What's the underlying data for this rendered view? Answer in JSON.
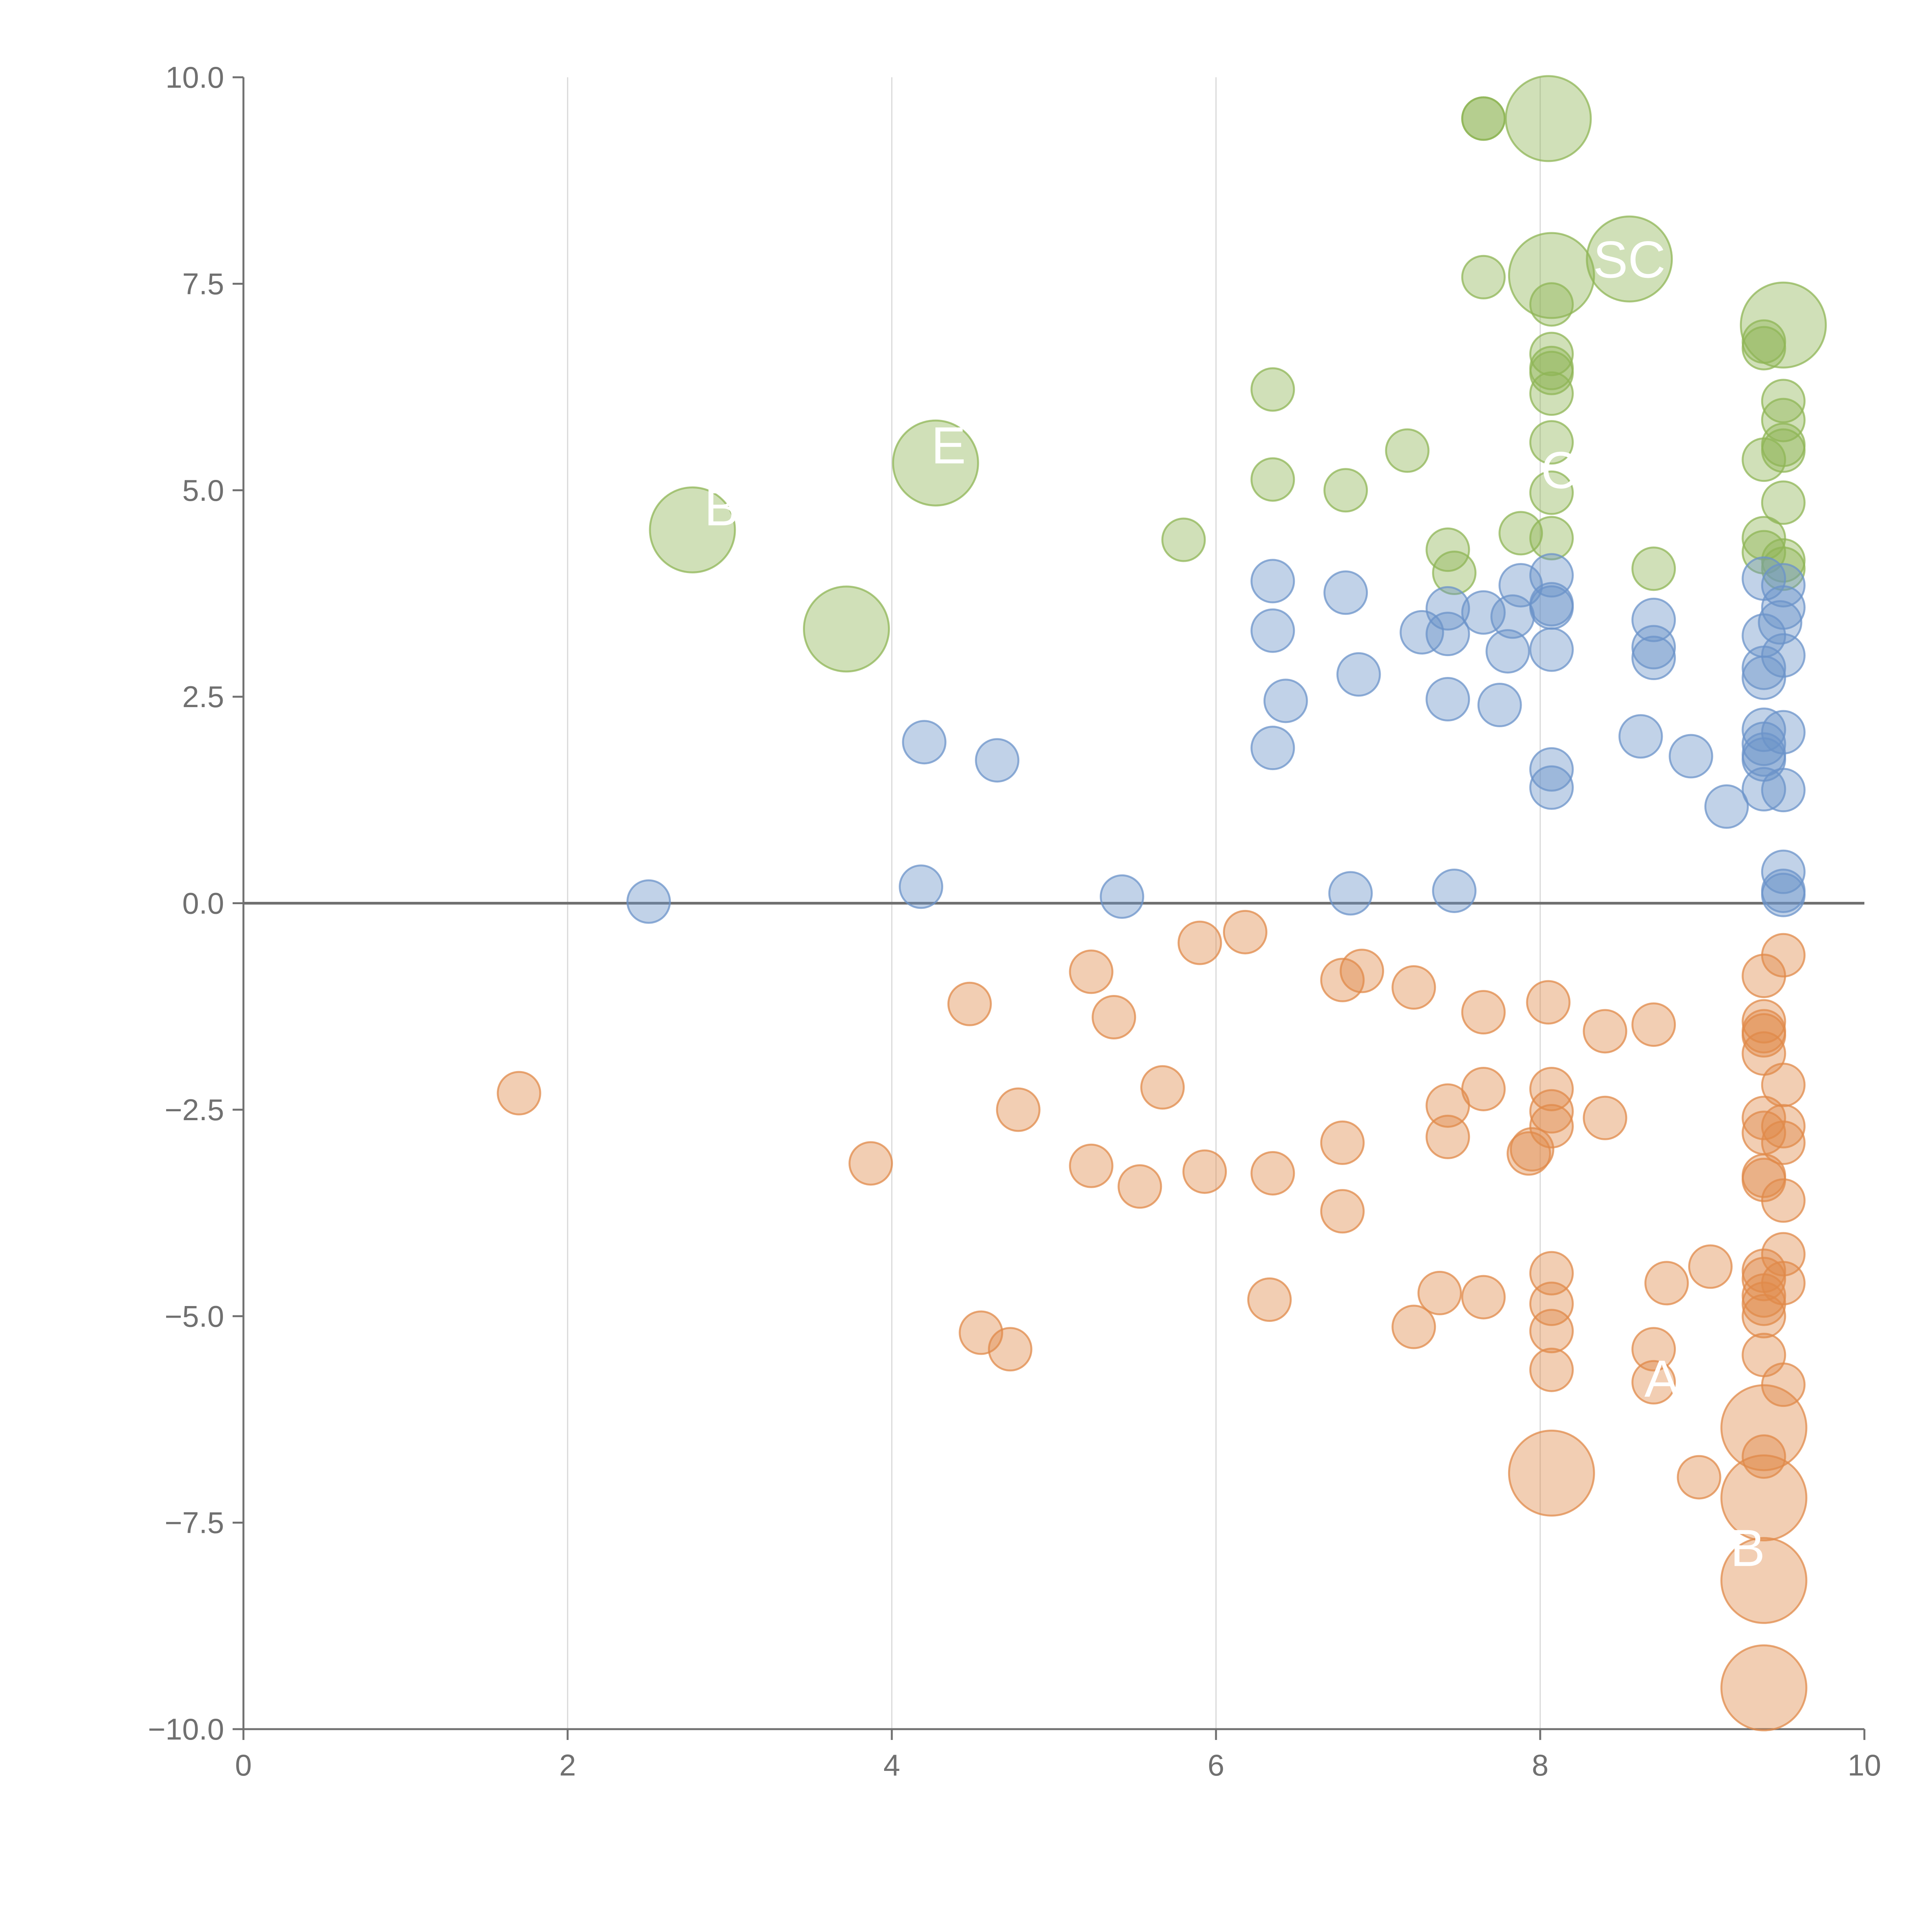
{
  "chart_data": {
    "type": "scatter",
    "title": "",
    "xlabel": "",
    "ylabel": "",
    "xlim": [
      0,
      10
    ],
    "ylim": [
      -10,
      10
    ],
    "x_ticks": [
      "0",
      "2",
      "4",
      "6",
      "8",
      "10"
    ],
    "y_ticks": [
      "10.0",
      "7.5",
      "5.0",
      "2.5",
      "0.0",
      "−2.5",
      "−5.0",
      "−7.5",
      "−10.0"
    ],
    "grid": "vertical",
    "zero_line": true,
    "legend": "none",
    "colors": {
      "positive_high": "#8fb556",
      "positive": "#6b93c9",
      "negative": "#e08a4a",
      "axis": "#707070",
      "grid": "#d8d8d8"
    },
    "series": [
      {
        "name": "high",
        "color": "#8fb556",
        "points": [
          [
            7.65,
            9.5,
            1
          ],
          [
            7.65,
            9.5,
            1
          ],
          [
            8.05,
            9.5,
            4
          ],
          [
            8.55,
            7.8,
            4
          ],
          [
            7.65,
            7.58,
            1
          ],
          [
            8.07,
            7.6,
            4
          ],
          [
            8.07,
            7.25,
            1
          ],
          [
            9.5,
            7.0,
            4
          ],
          [
            9.38,
            6.8,
            1
          ],
          [
            9.38,
            6.72,
            1
          ],
          [
            8.07,
            6.65,
            1
          ],
          [
            8.07,
            6.48,
            1
          ],
          [
            8.07,
            6.42,
            1
          ],
          [
            6.35,
            6.22,
            1
          ],
          [
            8.07,
            6.17,
            1
          ],
          [
            9.5,
            6.08,
            1
          ],
          [
            9.5,
            5.85,
            1
          ],
          [
            8.07,
            5.58,
            1
          ],
          [
            9.5,
            5.55,
            1
          ],
          [
            9.5,
            5.48,
            1
          ],
          [
            7.18,
            5.48,
            1
          ],
          [
            9.38,
            5.37,
            1
          ],
          [
            4.27,
            5.33,
            4
          ],
          [
            6.35,
            5.13,
            1
          ],
          [
            6.8,
            5.0,
            1
          ],
          [
            8.07,
            4.97,
            1
          ],
          [
            9.5,
            4.85,
            1
          ],
          [
            2.77,
            4.52,
            4
          ],
          [
            7.88,
            4.48,
            1
          ],
          [
            5.8,
            4.4,
            1
          ],
          [
            8.07,
            4.42,
            1
          ],
          [
            9.38,
            4.42,
            1
          ],
          [
            7.43,
            4.28,
            1
          ],
          [
            9.38,
            4.25,
            1
          ],
          [
            9.5,
            4.15,
            1
          ],
          [
            9.5,
            4.05,
            1
          ],
          [
            8.7,
            4.05,
            1
          ],
          [
            7.47,
            4.0,
            1
          ],
          [
            3.72,
            3.32,
            4
          ]
        ]
      },
      {
        "name": "positive",
        "color": "#6b93c9",
        "points": [
          [
            8.07,
            3.97,
            1
          ],
          [
            9.38,
            3.93,
            1
          ],
          [
            6.35,
            3.9,
            1
          ],
          [
            7.88,
            3.85,
            1
          ],
          [
            9.5,
            3.85,
            1
          ],
          [
            6.8,
            3.76,
            1
          ],
          [
            8.07,
            3.62,
            1
          ],
          [
            8.07,
            3.58,
            1
          ],
          [
            9.5,
            3.58,
            1
          ],
          [
            7.43,
            3.57,
            1
          ],
          [
            7.65,
            3.52,
            1
          ],
          [
            7.83,
            3.47,
            1
          ],
          [
            8.7,
            3.43,
            1
          ],
          [
            9.48,
            3.4,
            1
          ],
          [
            6.35,
            3.3,
            1
          ],
          [
            7.27,
            3.28,
            1
          ],
          [
            7.43,
            3.26,
            1
          ],
          [
            9.38,
            3.24,
            1
          ],
          [
            8.7,
            3.1,
            1
          ],
          [
            8.07,
            3.07,
            1
          ],
          [
            7.8,
            3.05,
            1
          ],
          [
            9.5,
            3.0,
            1
          ],
          [
            8.7,
            2.97,
            1
          ],
          [
            9.38,
            2.85,
            1
          ],
          [
            6.88,
            2.77,
            1
          ],
          [
            9.38,
            2.73,
            1
          ],
          [
            7.43,
            2.47,
            1
          ],
          [
            6.43,
            2.45,
            1
          ],
          [
            7.75,
            2.4,
            1
          ],
          [
            9.38,
            2.1,
            1
          ],
          [
            9.5,
            2.07,
            1
          ],
          [
            8.62,
            2.02,
            1
          ],
          [
            4.2,
            1.95,
            1
          ],
          [
            9.38,
            1.93,
            1
          ],
          [
            6.35,
            1.88,
            1
          ],
          [
            9.38,
            1.8,
            1
          ],
          [
            8.93,
            1.78,
            1
          ],
          [
            9.38,
            1.74,
            1
          ],
          [
            4.65,
            1.73,
            1
          ],
          [
            8.07,
            1.62,
            1
          ],
          [
            8.07,
            1.4,
            1
          ],
          [
            9.38,
            1.38,
            1
          ],
          [
            9.5,
            1.37,
            1
          ],
          [
            9.15,
            1.17,
            1
          ],
          [
            9.5,
            0.38,
            1
          ],
          [
            4.18,
            0.2,
            1
          ],
          [
            9.5,
            0.15,
            1
          ],
          [
            7.47,
            0.15,
            1
          ],
          [
            6.83,
            0.12,
            1
          ],
          [
            9.5,
            0.1,
            1
          ],
          [
            5.42,
            0.08,
            1
          ],
          [
            2.5,
            0.02,
            1
          ]
        ]
      },
      {
        "name": "negative",
        "color": "#e08a4a",
        "points": [
          [
            6.18,
            -0.35,
            1
          ],
          [
            5.9,
            -0.48,
            1
          ],
          [
            9.5,
            -0.63,
            1
          ],
          [
            6.9,
            -0.82,
            1
          ],
          [
            5.23,
            -0.83,
            1
          ],
          [
            9.38,
            -0.88,
            1
          ],
          [
            6.78,
            -0.93,
            1
          ],
          [
            7.22,
            -1.02,
            1
          ],
          [
            8.05,
            -1.2,
            1
          ],
          [
            4.48,
            -1.22,
            1
          ],
          [
            7.65,
            -1.32,
            1
          ],
          [
            5.37,
            -1.38,
            1
          ],
          [
            8.7,
            -1.47,
            1
          ],
          [
            9.38,
            -1.43,
            1
          ],
          [
            8.4,
            -1.55,
            1
          ],
          [
            9.38,
            -1.55,
            1
          ],
          [
            9.38,
            -1.6,
            1
          ],
          [
            9.38,
            -1.82,
            1
          ],
          [
            9.5,
            -2.2,
            1
          ],
          [
            7.65,
            -2.25,
            1
          ],
          [
            5.67,
            -2.23,
            1
          ],
          [
            8.07,
            -2.25,
            1
          ],
          [
            1.7,
            -2.3,
            1
          ],
          [
            7.43,
            -2.45,
            1
          ],
          [
            4.78,
            -2.5,
            1
          ],
          [
            8.07,
            -2.52,
            1
          ],
          [
            8.4,
            -2.6,
            1
          ],
          [
            9.38,
            -2.6,
            1
          ],
          [
            8.07,
            -2.7,
            1
          ],
          [
            9.5,
            -2.7,
            1
          ],
          [
            9.38,
            -2.78,
            1
          ],
          [
            7.43,
            -2.83,
            1
          ],
          [
            6.78,
            -2.9,
            1
          ],
          [
            9.5,
            -2.9,
            1
          ],
          [
            7.95,
            -2.98,
            1
          ],
          [
            7.93,
            -3.03,
            1
          ],
          [
            3.87,
            -3.15,
            1
          ],
          [
            5.23,
            -3.18,
            1
          ],
          [
            5.93,
            -3.25,
            1
          ],
          [
            6.35,
            -3.27,
            1
          ],
          [
            9.38,
            -3.3,
            1
          ],
          [
            9.38,
            -3.35,
            1
          ],
          [
            5.53,
            -3.43,
            1
          ],
          [
            9.5,
            -3.6,
            1
          ],
          [
            6.78,
            -3.73,
            1
          ],
          [
            9.5,
            -4.25,
            1
          ],
          [
            9.05,
            -4.4,
            1
          ],
          [
            9.38,
            -4.45,
            1
          ],
          [
            8.07,
            -4.48,
            1
          ],
          [
            9.38,
            -4.55,
            1
          ],
          [
            8.78,
            -4.6,
            1
          ],
          [
            9.5,
            -4.6,
            1
          ],
          [
            7.38,
            -4.72,
            1
          ],
          [
            9.38,
            -4.75,
            1
          ],
          [
            7.65,
            -4.77,
            1
          ],
          [
            6.33,
            -4.8,
            1
          ],
          [
            9.38,
            -4.85,
            1
          ],
          [
            8.07,
            -4.85,
            1
          ],
          [
            9.38,
            -5.0,
            1
          ],
          [
            7.22,
            -5.13,
            1
          ],
          [
            8.07,
            -5.18,
            1
          ],
          [
            4.55,
            -5.2,
            1
          ],
          [
            4.73,
            -5.4,
            1
          ],
          [
            8.7,
            -5.4,
            1
          ],
          [
            9.38,
            -5.47,
            1
          ],
          [
            8.07,
            -5.65,
            1
          ],
          [
            8.7,
            -5.8,
            1
          ],
          [
            9.5,
            -5.83,
            1
          ],
          [
            9.38,
            -6.35,
            4
          ],
          [
            9.38,
            -6.7,
            1
          ],
          [
            8.07,
            -6.9,
            4
          ],
          [
            8.98,
            -6.95,
            1
          ],
          [
            9.38,
            -7.2,
            4
          ],
          [
            9.38,
            -8.2,
            4
          ],
          [
            9.38,
            -9.5,
            4
          ]
        ]
      }
    ],
    "annotations": [
      {
        "text": "SC",
        "x": 8.55,
        "y": 7.8
      },
      {
        "text": "C",
        "x": 8.12,
        "y": 5.25
      },
      {
        "text": "E",
        "x": 4.35,
        "y": 5.55
      },
      {
        "text": "B",
        "x": 2.95,
        "y": 4.8
      },
      {
        "text": "A",
        "x": 8.75,
        "y": -5.75
      },
      {
        "text": "B",
        "x": 9.28,
        "y": -7.8
      }
    ]
  }
}
